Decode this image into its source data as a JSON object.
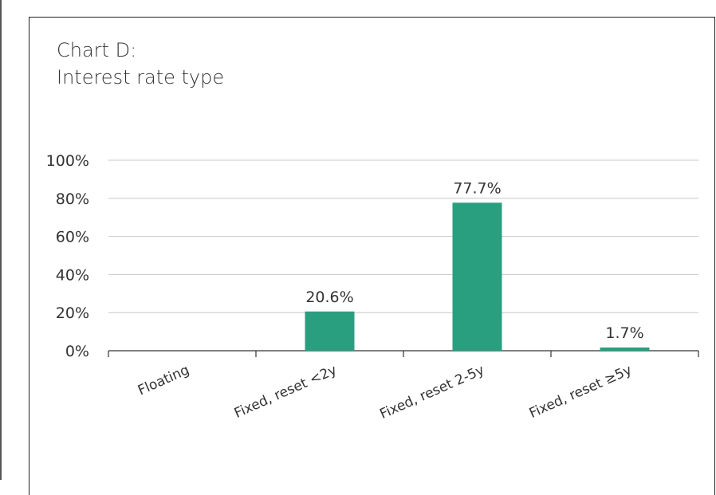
{
  "chart_data": {
    "type": "bar",
    "title_line1": "Chart D:",
    "title_line2": "Interest rate type",
    "categories": [
      "Floating",
      "Fixed, reset <2y",
      "Fixed, reset 2-5y",
      "Fixed, reset ≥5y"
    ],
    "values": [
      0,
      20.6,
      77.7,
      1.7
    ],
    "data_labels": [
      "",
      "20.6%",
      "77.7%",
      "1.7%"
    ],
    "y_ticks": [
      "0%",
      "20%",
      "40%",
      "60%",
      "80%",
      "100%"
    ],
    "ylim": [
      0,
      100
    ],
    "grid": true,
    "bar_color": "#2a9f80"
  }
}
